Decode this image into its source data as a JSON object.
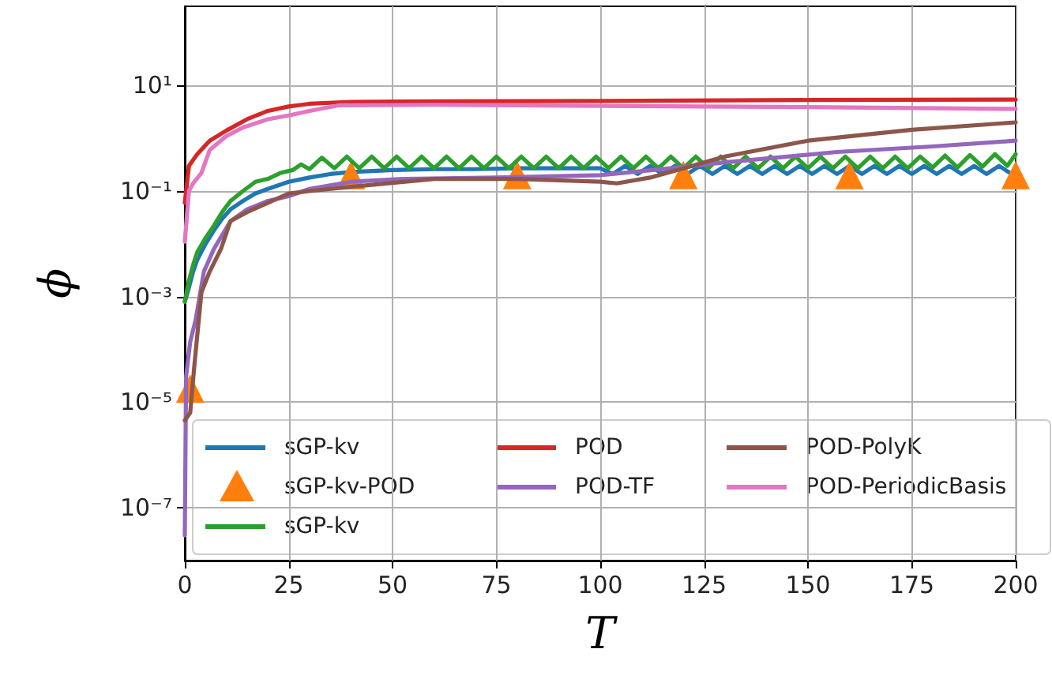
{
  "chart_data": {
    "type": "line",
    "xlabel": "T",
    "ylabel": "ϕ",
    "log": "y",
    "grid": true,
    "legend": "bottom right",
    "marker": "none",
    "line_style": "solid",
    "xlim": [
      0,
      200
    ],
    "xticks": [
      0,
      25,
      50,
      75,
      100,
      125,
      150,
      175,
      200
    ],
    "ylim": [
      1e-08,
      316
    ],
    "yticks": [
      {
        "value": 10,
        "label": "10¹"
      },
      {
        "value": 0.1,
        "label": "10⁻¹"
      },
      {
        "value": 0.001,
        "label": "10⁻³"
      },
      {
        "value": 1e-05,
        "label": "10⁻⁵"
      },
      {
        "value": 1e-07,
        "label": "10⁻⁷"
      }
    ],
    "series": [
      {
        "name": "sGP-kv",
        "color": "#1f77b4",
        "x": [
          0,
          1,
          2,
          3,
          5,
          7,
          9,
          11,
          14,
          17,
          20,
          25,
          30,
          35,
          40,
          50,
          60,
          70,
          80,
          90,
          100,
          103,
          106,
          109,
          112,
          115,
          118,
          121,
          124,
          127,
          130,
          133,
          136,
          139,
          142,
          145,
          148,
          151,
          154,
          157,
          160,
          163,
          166,
          169,
          172,
          175,
          178,
          181,
          184,
          187,
          190,
          193,
          196,
          199,
          200
        ],
        "values": [
          0.0008,
          0.0015,
          0.003,
          0.005,
          0.01,
          0.018,
          0.03,
          0.045,
          0.065,
          0.09,
          0.11,
          0.15,
          0.18,
          0.21,
          0.23,
          0.25,
          0.26,
          0.26,
          0.27,
          0.27,
          0.27,
          0.21,
          0.3,
          0.21,
          0.3,
          0.21,
          0.3,
          0.21,
          0.3,
          0.21,
          0.3,
          0.21,
          0.3,
          0.21,
          0.3,
          0.21,
          0.3,
          0.21,
          0.3,
          0.21,
          0.3,
          0.21,
          0.3,
          0.21,
          0.3,
          0.21,
          0.3,
          0.21,
          0.3,
          0.21,
          0.3,
          0.21,
          0.3,
          0.21,
          0.25
        ]
      },
      {
        "name": "sGP-kv-POD",
        "type": "scatter",
        "marker": "triangle",
        "color": "#ff7f0e",
        "x": [
          1.3,
          40,
          80,
          120,
          160,
          200
        ],
        "values": [
          1.8e-05,
          0.2,
          0.2,
          0.2,
          0.2,
          0.2
        ]
      },
      {
        "name": "sGP-kv",
        "color": "#2ca02c",
        "x": [
          0,
          1,
          2,
          3,
          5,
          7,
          9,
          11,
          14,
          17,
          20,
          23,
          26,
          28,
          30,
          33,
          36,
          39,
          42,
          45,
          48,
          51,
          54,
          57,
          60,
          63,
          66,
          69,
          72,
          75,
          78,
          81,
          84,
          87,
          90,
          93,
          96,
          99,
          102,
          105,
          108,
          111,
          114,
          117,
          120,
          123,
          126,
          129,
          132,
          135,
          138,
          141,
          144,
          147,
          150,
          153,
          156,
          159,
          162,
          165,
          168,
          171,
          174,
          177,
          180,
          183,
          186,
          189,
          192,
          195,
          198,
          200
        ],
        "values": [
          0.0008,
          0.002,
          0.004,
          0.007,
          0.013,
          0.022,
          0.04,
          0.065,
          0.1,
          0.15,
          0.17,
          0.22,
          0.25,
          0.32,
          0.26,
          0.43,
          0.27,
          0.45,
          0.27,
          0.45,
          0.27,
          0.45,
          0.27,
          0.45,
          0.27,
          0.45,
          0.27,
          0.45,
          0.27,
          0.45,
          0.27,
          0.45,
          0.27,
          0.45,
          0.27,
          0.45,
          0.27,
          0.45,
          0.27,
          0.45,
          0.27,
          0.45,
          0.27,
          0.45,
          0.27,
          0.45,
          0.27,
          0.45,
          0.27,
          0.45,
          0.27,
          0.45,
          0.27,
          0.45,
          0.27,
          0.45,
          0.27,
          0.45,
          0.27,
          0.45,
          0.27,
          0.45,
          0.27,
          0.45,
          0.28,
          0.47,
          0.28,
          0.48,
          0.29,
          0.5,
          0.3,
          0.5
        ]
      },
      {
        "name": "POD",
        "color": "#d62728",
        "x": [
          0,
          1,
          3,
          6,
          10,
          15,
          20,
          25,
          30,
          40,
          60,
          100,
          150,
          200
        ],
        "values": [
          0.06,
          0.3,
          0.5,
          0.9,
          1.4,
          2.3,
          3.3,
          4.0,
          4.5,
          4.9,
          5.0,
          5.1,
          5.3,
          5.4
        ]
      },
      {
        "name": "POD-TF",
        "color": "#9467bd",
        "x": [
          0,
          0.3,
          1.3,
          2.6,
          4.6,
          7,
          11,
          15,
          20,
          25,
          30,
          40,
          53,
          75,
          100,
          117,
          130,
          157,
          180,
          200
        ],
        "values": [
          3e-08,
          3e-05,
          0.00014,
          0.00036,
          0.003,
          0.008,
          0.027,
          0.045,
          0.065,
          0.08,
          0.11,
          0.15,
          0.17,
          0.18,
          0.2,
          0.27,
          0.35,
          0.55,
          0.7,
          0.9
        ]
      },
      {
        "name": "POD-PolyK",
        "color": "#8c564b",
        "x": [
          0,
          1.3,
          2.3,
          4,
          6,
          8.7,
          11,
          15,
          20,
          25,
          30,
          40,
          60,
          80,
          100,
          104,
          112,
          120,
          130,
          150,
          175,
          200
        ],
        "values": [
          4.5e-06,
          6.3e-06,
          5e-05,
          0.0012,
          0.003,
          0.008,
          0.027,
          0.04,
          0.06,
          0.09,
          0.1,
          0.12,
          0.17,
          0.17,
          0.15,
          0.14,
          0.18,
          0.27,
          0.45,
          0.9,
          1.45,
          2.0
        ]
      },
      {
        "name": "POD-PeriodicBasis",
        "color": "#e377c2",
        "x": [
          0,
          1,
          2,
          4,
          6,
          10,
          14,
          20,
          25,
          30,
          37,
          60,
          100,
          150,
          200
        ],
        "values": [
          0.011,
          0.1,
          0.14,
          0.22,
          0.6,
          1.1,
          1.6,
          2.3,
          2.7,
          3.3,
          4.2,
          4.3,
          4.1,
          3.9,
          3.6
        ]
      }
    ]
  }
}
